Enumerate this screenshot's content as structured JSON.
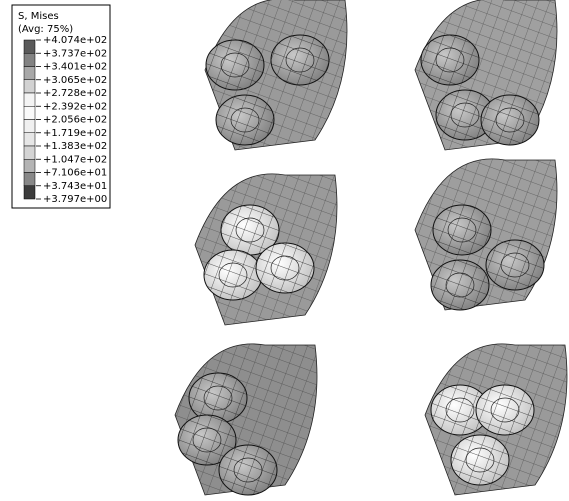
{
  "legend": {
    "title": "S, Mises",
    "subtitle": "(Avg: 75%)",
    "labels": [
      "+4.074e+02",
      "+3.737e+02",
      "+3.401e+02",
      "+3.065e+02",
      "+2.728e+02",
      "+2.392e+02",
      "+2.056e+02",
      "+1.719e+02",
      "+1.383e+02",
      "+1.047e+02",
      "+7.106e+01",
      "+3.743e+01",
      "+3.797e+00"
    ],
    "colors": [
      "#5a5a5a",
      "#828282",
      "#a8a8a8",
      "#d2d2d2",
      "#f4f4f4",
      "#fafafa",
      "#f0f0f0",
      "#e6e6e6",
      "#d4d4d4",
      "#b4b4b4",
      "#888888",
      "#3c3c3c"
    ]
  }
}
